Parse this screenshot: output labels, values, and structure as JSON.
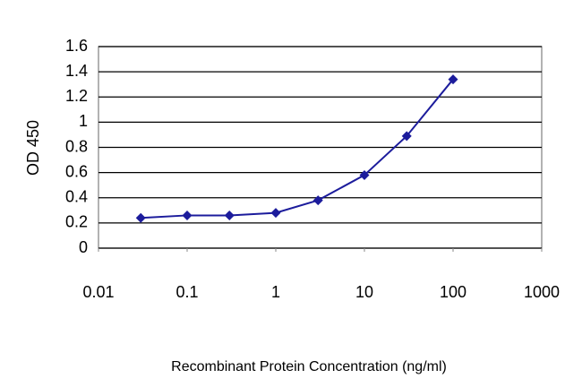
{
  "chart_data": {
    "type": "line",
    "x_label": "Recombinant Protein Concentration (ng/ml)",
    "y_label": "OD 450",
    "x": [
      0.03,
      0.1,
      0.3,
      1,
      3,
      10,
      30,
      100
    ],
    "values": [
      0.24,
      0.26,
      0.26,
      0.28,
      0.38,
      0.58,
      0.89,
      1.34
    ],
    "color": "#1c1c9c",
    "xscale": "log",
    "xlim": [
      0.01,
      1000
    ],
    "xticks": [
      0.01,
      0.1,
      1,
      10,
      100,
      1000
    ],
    "ylim": [
      0,
      1.6
    ],
    "yticks": [
      0,
      0.2,
      0.4,
      0.6,
      0.8,
      1,
      1.2,
      1.4,
      1.6
    ],
    "grid": true
  }
}
